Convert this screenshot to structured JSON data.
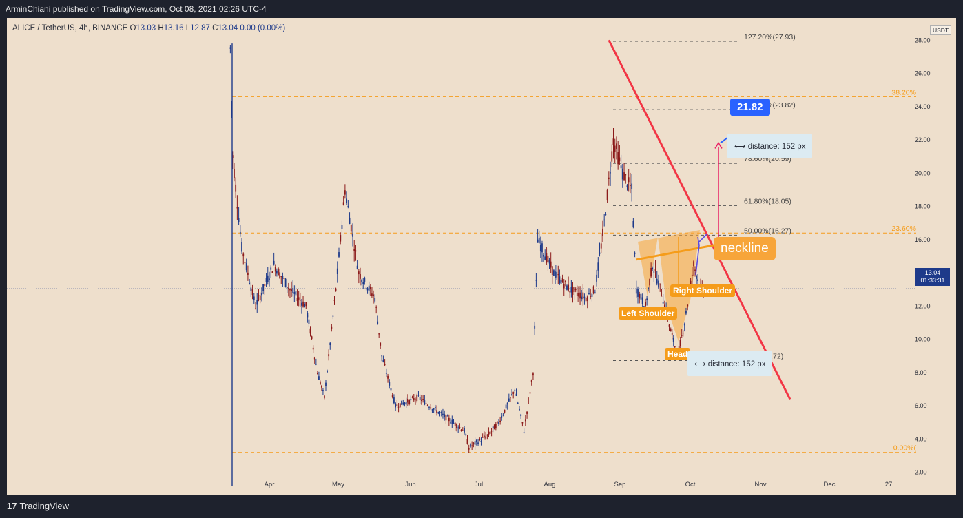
{
  "header": {
    "published": "ArminChiani published on TradingView.com, Oct 08, 2021 02:26 UTC-4"
  },
  "legend": {
    "symbol": "ALICE / TetherUS, 4h, BINANCE",
    "o_label": "O",
    "o": "13.03",
    "h_label": "H",
    "h": "13.16",
    "l_label": "L",
    "l": "12.87",
    "c_label": "C",
    "c": "13.04",
    "change": "0.00 (0.00%)"
  },
  "currency": "USDT",
  "last_price": {
    "price": "13.04",
    "countdown": "01:33:31"
  },
  "footer": {
    "brand": "TradingView",
    "logo_glyph": "17"
  },
  "colors": {
    "chart_bg": "#eedfcc",
    "candle": "#1e3a8a",
    "trendline": "#f23645",
    "fib_orange": "#f59c1a",
    "pattern_fill": "#f7a53a",
    "target_blue": "#2962ff",
    "projection": "#e91e63"
  },
  "annotations": {
    "neckline": "neckline",
    "left_shoulder": "Left Shoulder",
    "head": "Head",
    "right_shoulder": "Right Shoulder",
    "target": "21.82",
    "distance_top": "distance: 152 px",
    "distance_bottom": "distance: 152 px",
    "fib_left_top": "38.20%",
    "fib_left_mid": "23.60%",
    "fib_left_bottom": "0.00%("
  },
  "chart_data": {
    "type": "candlestick",
    "symbol": "ALICE / TetherUS",
    "interval": "4h",
    "ylim": [
      1,
      28
    ],
    "y_ticks": [
      "2.00",
      "4.00",
      "6.00",
      "8.00",
      "10.00",
      "12.00",
      "14.00",
      "16.00",
      "18.00",
      "20.00",
      "22.00",
      "24.00",
      "26.00",
      "28.00"
    ],
    "x_ticks": [
      "Apr",
      "May",
      "Jun",
      "Jul",
      "Aug",
      "Sep",
      "Oct",
      "Nov",
      "Dec",
      "27"
    ],
    "approx_path": {
      "x": [
        "Mar 15",
        "Mar 16",
        "Mar 20",
        "Mar 26",
        "Apr 03",
        "Apr 10",
        "Apr 17",
        "Apr 22",
        "Apr 25",
        "Apr 30",
        "May 04",
        "May 10",
        "May 17",
        "May 20",
        "May 26",
        "Jun 05",
        "Jun 15",
        "Jun 25",
        "Jun 27",
        "Jul 05",
        "Jul 10",
        "Jul 17",
        "Jul 21",
        "Jul 25",
        "Jul 27",
        "Aug 03",
        "Aug 10",
        "Aug 17",
        "Aug 21",
        "Aug 25",
        "Aug 29",
        "Sep 02",
        "Sep 06",
        "Sep 08",
        "Sep 12",
        "Sep 15",
        "Sep 19",
        "Sep 23",
        "Sep 26",
        "Sep 29",
        "Oct 03",
        "Oct 06",
        "Oct 08"
      ],
      "close": [
        27.5,
        21,
        15.5,
        12,
        14.5,
        13,
        12,
        8,
        6.5,
        13,
        19,
        14,
        12.5,
        9,
        6,
        6.5,
        5.5,
        4.5,
        3.5,
        4.2,
        5,
        7,
        4.5,
        8,
        16,
        14,
        13,
        12.5,
        13,
        17,
        22,
        20,
        19,
        13,
        12,
        14.5,
        12.8,
        10.5,
        9,
        11,
        14.5,
        13,
        13.04
      ]
    },
    "fib_right": [
      {
        "level": "127.20%",
        "price": 27.93
      },
      {
        "level": "100.00%",
        "price": 23.82
      },
      {
        "level": "78.60%",
        "price": 20.59
      },
      {
        "level": "61.80%",
        "price": 18.05
      },
      {
        "level": "50.00%",
        "price": 16.27
      },
      {
        "level": "0.00%",
        "price": 8.72
      }
    ],
    "fib_left": [
      {
        "level": "38.20%",
        "price": 24.6
      },
      {
        "level": "23.60%",
        "price": 16.4
      },
      {
        "level": "0.00%",
        "price": 3.2
      }
    ],
    "trendline": {
      "x": [
        "Aug 27",
        "Nov 14"
      ],
      "y": [
        28,
        6.4
      ]
    },
    "neckline": {
      "x": [
        "Sep 08",
        "Oct 17"
      ],
      "y": [
        14.8,
        15.8
      ]
    },
    "target_price": 21.82
  }
}
